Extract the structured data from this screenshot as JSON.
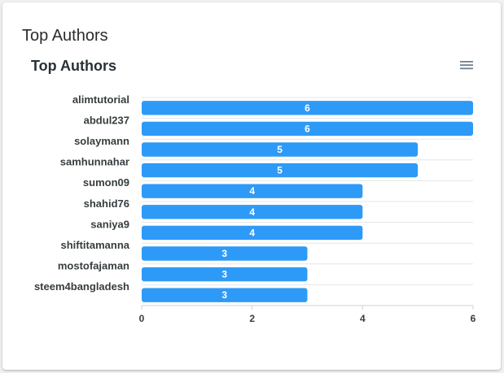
{
  "card": {
    "title": "Top Authors"
  },
  "chart_data": {
    "type": "bar",
    "orientation": "horizontal",
    "title": "Top Authors",
    "categories": [
      "alimtutorial",
      "abdul237",
      "solaymann",
      "samhunnahar",
      "sumon09",
      "shahid76",
      "saniya9",
      "shiftitamanna",
      "mostofajaman",
      "steem4bangladesh"
    ],
    "values": [
      6,
      6,
      5,
      5,
      4,
      4,
      4,
      3,
      3,
      3
    ],
    "xlim": [
      0,
      6
    ],
    "xticks": [
      "0",
      "2",
      "4",
      "6"
    ],
    "data_labels": true,
    "grid": "horizontal",
    "bar_color": "#2e9af7"
  },
  "toolbar": {
    "menu_icon": "hamburger-menu-icon"
  }
}
